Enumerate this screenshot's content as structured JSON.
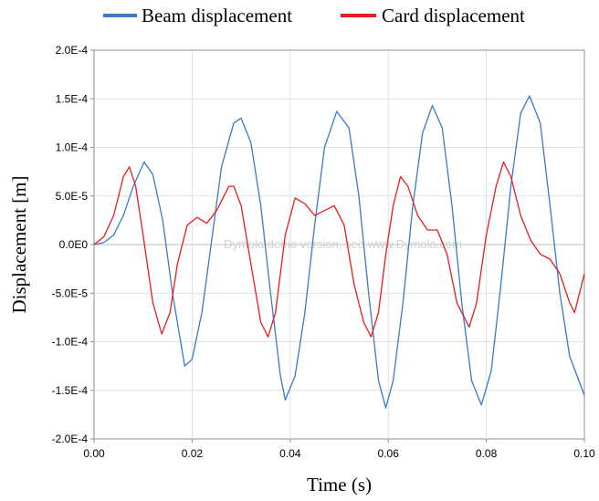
{
  "chart_data": {
    "type": "line",
    "xlabel": "Time (s)",
    "ylabel": "Displacement [m]",
    "xlim": [
      0,
      0.1
    ],
    "ylim": [
      -0.0002,
      0.0002
    ],
    "x_ticks": [
      0,
      0.02,
      0.04,
      0.06,
      0.08,
      0.1
    ],
    "x_tick_labels": [
      "0.00",
      "0.02",
      "0.04",
      "0.06",
      "0.08",
      "0.10"
    ],
    "y_ticks": [
      0.0002,
      0.00015,
      0.0001,
      5e-05,
      0,
      -5e-05,
      -0.0001,
      -0.00015,
      -0.0002
    ],
    "y_tick_labels": [
      "2.0E-4",
      "1.5E-4",
      "1.0E-4",
      "5.0E-5",
      "0.0E0",
      "-5.0E-5",
      "-1.0E-4",
      "-1.5E-4",
      "-2.0E-4"
    ],
    "grid": true,
    "legend_position": "top",
    "watermark": "Dymola demo version, see www.Dymola.com",
    "series": [
      {
        "name": "Beam displacement",
        "color": "#3c78c8",
        "points": [
          [
            0,
            0
          ],
          [
            0.002,
            2e-06
          ],
          [
            0.004,
            1e-05
          ],
          [
            0.006,
            3e-05
          ],
          [
            0.008,
            6e-05
          ],
          [
            0.0102,
            8.5e-05
          ],
          [
            0.012,
            7.2e-05
          ],
          [
            0.014,
            2.5e-05
          ],
          [
            0.016,
            -5e-05
          ],
          [
            0.0185,
            -0.000125
          ],
          [
            0.02,
            -0.000118
          ],
          [
            0.022,
            -7e-05
          ],
          [
            0.024,
            5e-06
          ],
          [
            0.026,
            8e-05
          ],
          [
            0.0285,
            0.000125
          ],
          [
            0.03,
            0.00013
          ],
          [
            0.032,
            0.000105
          ],
          [
            0.034,
            4e-05
          ],
          [
            0.036,
            -5e-05
          ],
          [
            0.038,
            -0.000135
          ],
          [
            0.039,
            -0.00016
          ],
          [
            0.041,
            -0.000135
          ],
          [
            0.043,
            -7e-05
          ],
          [
            0.045,
            2e-05
          ],
          [
            0.047,
            0.0001
          ],
          [
            0.0495,
            0.000137
          ],
          [
            0.052,
            0.00012
          ],
          [
            0.054,
            5e-05
          ],
          [
            0.056,
            -5e-05
          ],
          [
            0.058,
            -0.00014
          ],
          [
            0.0595,
            -0.000168
          ],
          [
            0.061,
            -0.00014
          ],
          [
            0.063,
            -6e-05
          ],
          [
            0.065,
            4e-05
          ],
          [
            0.067,
            0.000115
          ],
          [
            0.069,
            0.000143
          ],
          [
            0.071,
            0.00012
          ],
          [
            0.073,
            4e-05
          ],
          [
            0.075,
            -6e-05
          ],
          [
            0.077,
            -0.00014
          ],
          [
            0.079,
            -0.000165
          ],
          [
            0.081,
            -0.00013
          ],
          [
            0.083,
            -4e-05
          ],
          [
            0.085,
            6e-05
          ],
          [
            0.087,
            0.000135
          ],
          [
            0.0888,
            0.000153
          ],
          [
            0.091,
            0.000125
          ],
          [
            0.093,
            4e-05
          ],
          [
            0.095,
            -5e-05
          ],
          [
            0.097,
            -0.000115
          ],
          [
            0.1,
            -0.000155
          ]
        ]
      },
      {
        "name": "Card displacement",
        "color": "#e41e1e",
        "points": [
          [
            0,
            0
          ],
          [
            0.002,
            8e-06
          ],
          [
            0.004,
            3e-05
          ],
          [
            0.006,
            7e-05
          ],
          [
            0.0072,
            8e-05
          ],
          [
            0.0085,
            6e-05
          ],
          [
            0.01,
            1e-05
          ],
          [
            0.012,
            -6e-05
          ],
          [
            0.0138,
            -9.2e-05
          ],
          [
            0.0155,
            -7e-05
          ],
          [
            0.017,
            -2e-05
          ],
          [
            0.019,
            2e-05
          ],
          [
            0.021,
            2.8e-05
          ],
          [
            0.023,
            2.2e-05
          ],
          [
            0.025,
            3.5e-05
          ],
          [
            0.0275,
            6e-05
          ],
          [
            0.0285,
            6e-05
          ],
          [
            0.03,
            4e-05
          ],
          [
            0.032,
            -2e-05
          ],
          [
            0.034,
            -8e-05
          ],
          [
            0.0355,
            -9.5e-05
          ],
          [
            0.037,
            -7e-05
          ],
          [
            0.039,
            1e-05
          ],
          [
            0.041,
            4.8e-05
          ],
          [
            0.043,
            4.2e-05
          ],
          [
            0.045,
            3e-05
          ],
          [
            0.047,
            3.5e-05
          ],
          [
            0.049,
            4e-05
          ],
          [
            0.051,
            2e-05
          ],
          [
            0.053,
            -4e-05
          ],
          [
            0.055,
            -8e-05
          ],
          [
            0.0565,
            -9.5e-05
          ],
          [
            0.058,
            -7e-05
          ],
          [
            0.0595,
            -1e-05
          ],
          [
            0.061,
            4e-05
          ],
          [
            0.0625,
            7e-05
          ],
          [
            0.064,
            6e-05
          ],
          [
            0.066,
            3e-05
          ],
          [
            0.068,
            1.5e-05
          ],
          [
            0.07,
            1.5e-05
          ],
          [
            0.072,
            -1e-05
          ],
          [
            0.074,
            -6e-05
          ],
          [
            0.0765,
            -8.5e-05
          ],
          [
            0.078,
            -6e-05
          ],
          [
            0.08,
            1e-05
          ],
          [
            0.082,
            6e-05
          ],
          [
            0.0835,
            8.5e-05
          ],
          [
            0.085,
            7e-05
          ],
          [
            0.087,
            3e-05
          ],
          [
            0.089,
            5e-06
          ],
          [
            0.091,
            -1e-05
          ],
          [
            0.093,
            -1.5e-05
          ],
          [
            0.095,
            -3e-05
          ],
          [
            0.097,
            -6e-05
          ],
          [
            0.098,
            -7e-05
          ],
          [
            0.099,
            -5e-05
          ],
          [
            0.1,
            -3e-05
          ]
        ]
      }
    ]
  }
}
